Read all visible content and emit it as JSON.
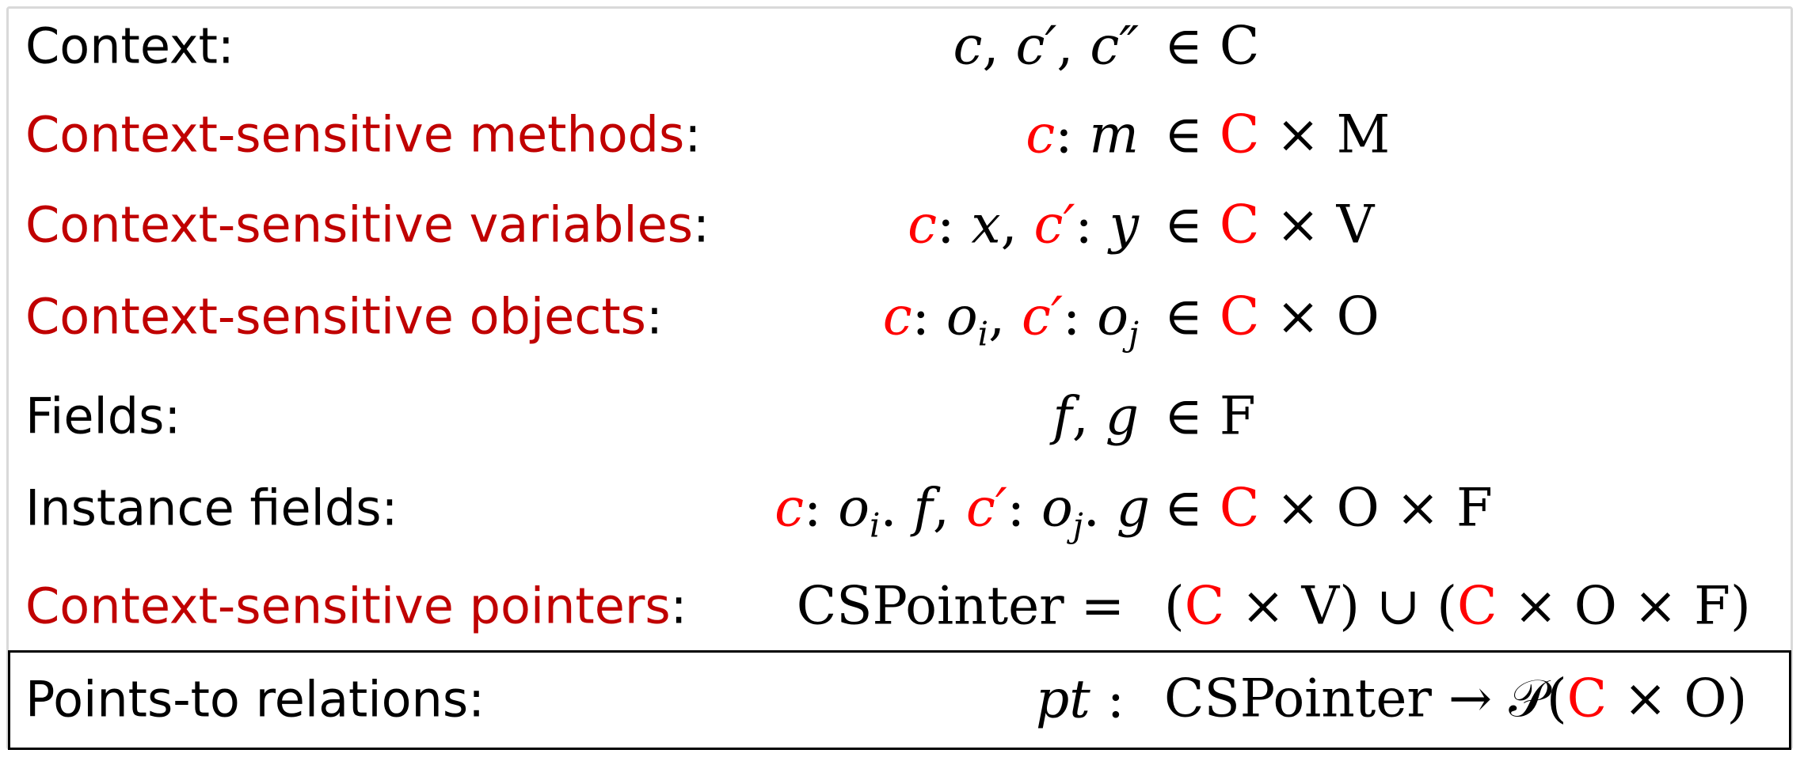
{
  "rows": [
    {
      "label_plain": "Context",
      "label_colon": ":",
      "set": "∈ C"
    },
    {
      "label_hl": "Context-sensitive methods",
      "label_colon": ":"
    },
    {
      "label_hl": "Context-sensitive variables",
      "label_colon": ":"
    },
    {
      "label_hl": "Context-sensitive objects",
      "label_colon": ":"
    },
    {
      "label_plain": "Fields",
      "label_colon": ":",
      "set": "∈ F"
    },
    {
      "label_plain": "Instance fields",
      "label_colon": ":"
    },
    {
      "label_hl": "Context-sensitive pointers",
      "label_colon": ":",
      "term": "CSPointer ="
    },
    {
      "label_plain": "Points-to relations",
      "label_colon": ":"
    }
  ],
  "symbols": {
    "c": "c",
    "c_prime": "c′",
    "c_dprime": "c″",
    "m": "m",
    "x": "x",
    "y": "y",
    "o": "o",
    "i": "i",
    "j": "j",
    "f": "f",
    "g": "g",
    "pt": "pt",
    "C": "C",
    "M": "M",
    "V": "V",
    "O": "O",
    "F": "F",
    "in": "∈",
    "times": "×",
    "cup": "∪",
    "arrow": "→",
    "powerset": "𝒫",
    "cspointer": "CSPointer"
  },
  "colors": {
    "label_highlight": "#c00000",
    "math_red": "#ff0000"
  }
}
